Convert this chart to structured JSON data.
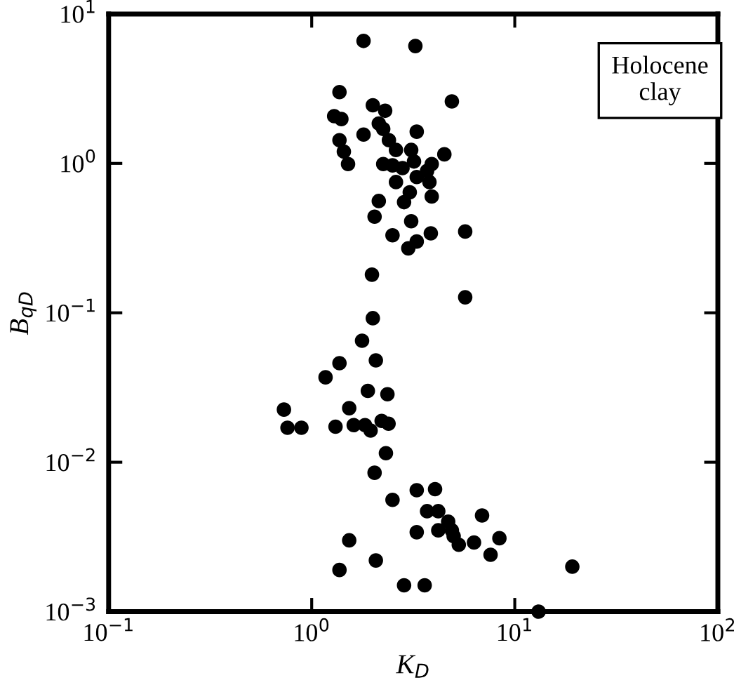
{
  "chart_data": {
    "type": "scatter",
    "xlabel": "K$_{D}$",
    "ylabel": "B$_{qD}$",
    "annotations": [
      "Holocene\nclay"
    ],
    "log": "xy",
    "grid": false,
    "marker": "circle",
    "xlim": [
      0.1,
      100
    ],
    "ylim": [
      0.001,
      10
    ],
    "xticks": [
      {
        "value": 0.1,
        "label": "10$^{−1}$"
      },
      {
        "value": 1,
        "label": "10$^{0}$"
      },
      {
        "value": 10,
        "label": "10$^{1}$"
      },
      {
        "value": 100,
        "label": "10$^{2}$"
      }
    ],
    "yticks": [
      {
        "value": 0.001,
        "label": "10$^{−3}$"
      },
      {
        "value": 0.01,
        "label": "10$^{−2}$"
      },
      {
        "value": 0.1,
        "label": "10$^{−1}$"
      },
      {
        "value": 1,
        "label": "10$^{0}$"
      },
      {
        "value": 10,
        "label": "10$^{1}$"
      }
    ],
    "series": [
      {
        "color": "#000000",
        "x": [
          1.8,
          3.24,
          1.37,
          4.9,
          2.0,
          2.3,
          1.29,
          1.4,
          2.14,
          2.25,
          1.8,
          3.29,
          1.37,
          2.4,
          1.44,
          2.6,
          3.09,
          4.5,
          1.51,
          2.25,
          2.5,
          2.8,
          3.19,
          3.9,
          3.7,
          3.29,
          2.6,
          3.8,
          3.04,
          3.9,
          2.14,
          2.85,
          2.04,
          3.09,
          5.7,
          2.5,
          3.86,
          3.29,
          2.99,
          1.98,
          5.7,
          2.0,
          1.77,
          1.37,
          1.17,
          2.07,
          1.89,
          2.36,
          1.53,
          0.73,
          0.76,
          0.89,
          1.31,
          1.61,
          1.83,
          1.95,
          2.21,
          2.39,
          2.32,
          2.04,
          3.29,
          4.05,
          2.5,
          3.7,
          4.2,
          4.7,
          4.9,
          4.2,
          3.29,
          5.0,
          5.3,
          6.3,
          6.9,
          8.4,
          7.6,
          1.53,
          2.07,
          1.37,
          2.85,
          3.6,
          13.1,
          19.2
        ],
        "values": [
          6.6,
          6.1,
          3.0,
          2.6,
          2.45,
          2.25,
          2.07,
          1.98,
          1.85,
          1.7,
          1.56,
          1.63,
          1.43,
          1.43,
          1.2,
          1.23,
          1.23,
          1.15,
          0.99,
          0.99,
          0.97,
          0.93,
          1.03,
          0.99,
          0.89,
          0.81,
          0.75,
          0.75,
          0.64,
          0.6,
          0.56,
          0.55,
          0.44,
          0.41,
          0.35,
          0.33,
          0.34,
          0.3,
          0.27,
          0.18,
          0.127,
          0.092,
          0.065,
          0.046,
          0.037,
          0.048,
          0.03,
          0.0285,
          0.023,
          0.0225,
          0.017,
          0.017,
          0.0173,
          0.0177,
          0.0177,
          0.0163,
          0.0189,
          0.0181,
          0.0115,
          0.0085,
          0.0065,
          0.0066,
          0.0056,
          0.0047,
          0.0047,
          0.004,
          0.0035,
          0.0035,
          0.0034,
          0.0032,
          0.0028,
          0.0029,
          0.0044,
          0.0031,
          0.0024,
          0.003,
          0.0022,
          0.0019,
          0.0015,
          0.0015,
          0.001,
          0.002
        ]
      }
    ]
  }
}
